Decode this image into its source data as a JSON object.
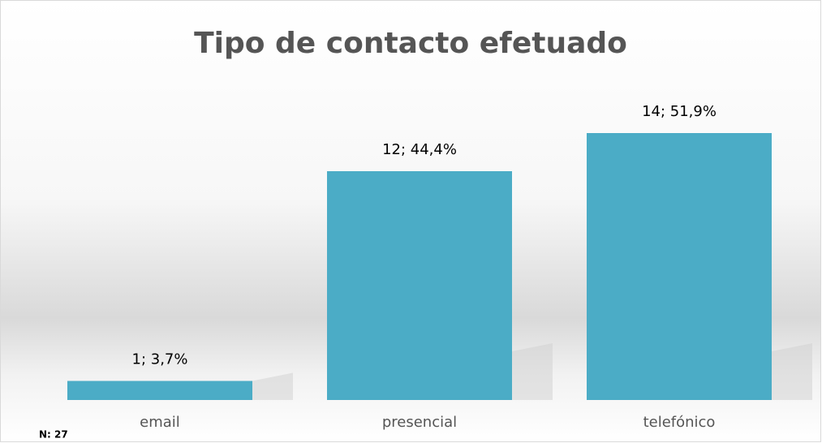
{
  "chart_data": {
    "type": "bar",
    "title": "Tipo de contacto efetuado",
    "categories": [
      "email",
      "presencial",
      "telefónico"
    ],
    "values": [
      1,
      12,
      14
    ],
    "value_labels": [
      "1; 3,7%",
      "12; 44,4%",
      "14; 51,9%"
    ],
    "color": "#4bacc6",
    "note": "N: 27"
  }
}
